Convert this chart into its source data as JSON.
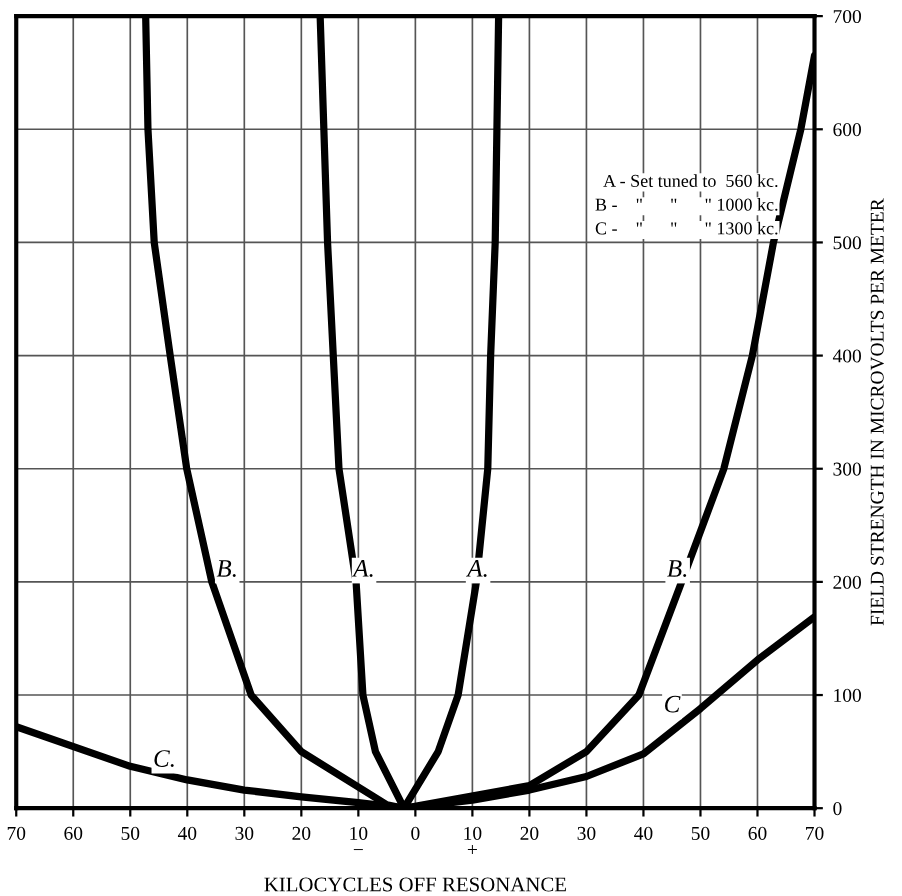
{
  "chart_data": {
    "type": "line",
    "xlabel": "KILOCYCLES OFF RESONANCE",
    "ylabel": "FIELD STRENGTH IN MICROVOLTS PER METER",
    "xlim": [
      -70,
      70
    ],
    "ylim": [
      0,
      700
    ],
    "xticks": [
      {
        "value": -70,
        "label": "70"
      },
      {
        "value": -60,
        "label": "60"
      },
      {
        "value": -50,
        "label": "50"
      },
      {
        "value": -40,
        "label": "40"
      },
      {
        "value": -30,
        "label": "30"
      },
      {
        "value": -20,
        "label": "20"
      },
      {
        "value": -10,
        "label": "10\n−"
      },
      0,
      {
        "value": 10,
        "label": "10\n+"
      },
      20,
      30,
      40,
      50,
      60,
      70
    ],
    "yticks": [
      0,
      100,
      200,
      300,
      400,
      500,
      600,
      700
    ],
    "grid": true,
    "legend": false,
    "marker": "none",
    "line_style": "solid",
    "series": [
      {
        "color": "#000000",
        "x": [
          -16.7,
          -15.4,
          -14.4,
          -13.4,
          -10.4,
          -9.2,
          -7,
          -2,
          4,
          7.5,
          10.7,
          12.7,
          13.2,
          14.0,
          14.6
        ],
        "values": [
          700,
          500,
          400,
          300,
          200,
          100,
          50,
          0,
          50,
          100,
          200,
          300,
          400,
          500,
          700
        ]
      },
      {
        "color": "#000000",
        "x": [
          -47.3,
          -46.9,
          -45.8,
          -43,
          -40.1,
          -35.7,
          -28.8,
          -20,
          -5,
          -2,
          20,
          30,
          39.2,
          46.7,
          54.1,
          59.1,
          62.8,
          67.6,
          70
        ],
        "values": [
          700,
          600,
          500,
          400,
          300,
          200,
          100,
          50,
          3,
          0,
          20,
          50,
          100,
          200,
          300,
          400,
          500,
          600,
          665
        ]
      },
      {
        "color": "#000000",
        "x": [
          -70,
          -50,
          -40,
          -30,
          -20,
          -10,
          -2,
          10,
          20,
          30,
          40,
          50,
          60,
          70
        ],
        "values": [
          72,
          37,
          25,
          16,
          10,
          5,
          0,
          7,
          16,
          28,
          48,
          88,
          131,
          169
        ]
      }
    ],
    "annotations": [
      {
        "text": "B.",
        "x": -33,
        "y": 210
      },
      {
        "text": "A.",
        "x": -9,
        "y": 210
      },
      {
        "text": "A.",
        "x": 11,
        "y": 210
      },
      {
        "text": "B.",
        "x": 46,
        "y": 210
      },
      {
        "text": "C",
        "x": 45,
        "y": 90
      },
      {
        "text": "C.",
        "x": -44,
        "y": 42
      },
      "A - Set tuned to  560 kc.",
      "B -    \"      \"      \" 1000 kc.",
      "C -    \"      \"      \" 1300 kc."
    ]
  }
}
